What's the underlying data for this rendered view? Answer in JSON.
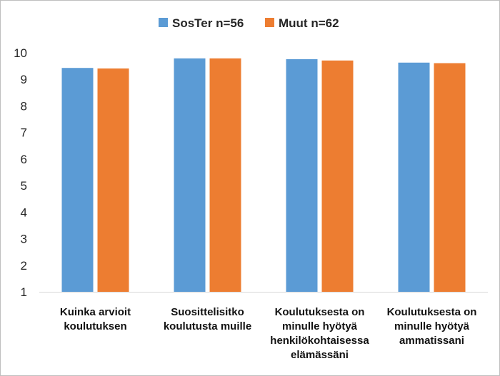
{
  "chart_data": {
    "type": "bar",
    "categories": [
      [
        "Kuinka arvioit",
        "koulutuksen"
      ],
      [
        "Suosittelisitko",
        "koulutusta muille"
      ],
      [
        "Koulutuksesta on",
        "minulle hyötyä",
        "henkilökohtaisessa",
        "elämässäni"
      ],
      [
        "Koulutuksesta on",
        "minulle hyötyä",
        "ammatissani"
      ]
    ],
    "series": [
      {
        "name": "SosTer n=56",
        "color": "#5b9bd5",
        "values": [
          9.43,
          9.79,
          9.76,
          9.63
        ]
      },
      {
        "name": "Muut n=62",
        "color": "#ed7d31",
        "values": [
          9.41,
          9.79,
          9.71,
          9.61
        ]
      }
    ],
    "y_ticks": [
      "1",
      "2",
      "3",
      "4",
      "5",
      "6",
      "7",
      "8",
      "9",
      "10"
    ],
    "ylim": [
      1,
      10
    ],
    "grid": false,
    "legend_position": "top-center",
    "title": "",
    "xlabel": "",
    "ylabel": ""
  }
}
